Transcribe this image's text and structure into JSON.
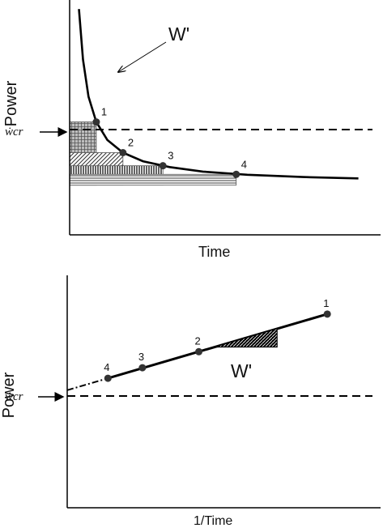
{
  "chart_data": [
    {
      "type": "line",
      "title": "",
      "xlabel": "Time",
      "ylabel": "Power",
      "reference_label": "ẇcr",
      "annotation": "W'",
      "grid": false,
      "series": [
        {
          "x": [
            0.42,
            0.6,
            0.85,
            1.2,
            1.7,
            2.4,
            3.3,
            4.5,
            6,
            8,
            10.5,
            13
          ],
          "values": [
            40,
            28.8,
            20.6,
            15,
            11,
            8.2,
            6.3,
            5,
            4,
            3.3,
            2.8,
            2.5
          ]
        }
      ],
      "points": [
        {
          "label": "1",
          "x": 1.2,
          "y": 15
        },
        {
          "label": "2",
          "x": 2.4,
          "y": 8.2
        },
        {
          "label": "3",
          "x": 4.2,
          "y": 5.3
        },
        {
          "label": "4",
          "x": 7.5,
          "y": 3.4
        }
      ],
      "critical_power": 1.0,
      "xlim": [
        0,
        14
      ],
      "ylim": [
        -10,
        42
      ]
    },
    {
      "type": "line",
      "title": "",
      "xlabel": "1/Time",
      "ylabel": "Power",
      "reference_label": "ẇcr",
      "annotation": "W'",
      "grid": false,
      "series": [
        {
          "x": [
            0.13,
            0.83
          ],
          "values": [
            3.4,
            15
          ]
        }
      ],
      "points": [
        {
          "label": "1",
          "x": 0.83,
          "y": 15
        },
        {
          "label": "2",
          "x": 0.42,
          "y": 8.2
        },
        {
          "label": "3",
          "x": 0.24,
          "y": 5.3
        },
        {
          "label": "4",
          "x": 0.13,
          "y": 3.4
        }
      ],
      "critical_power": 1.0,
      "xlim": [
        0,
        1
      ],
      "ylim": [
        -20,
        22
      ]
    }
  ]
}
